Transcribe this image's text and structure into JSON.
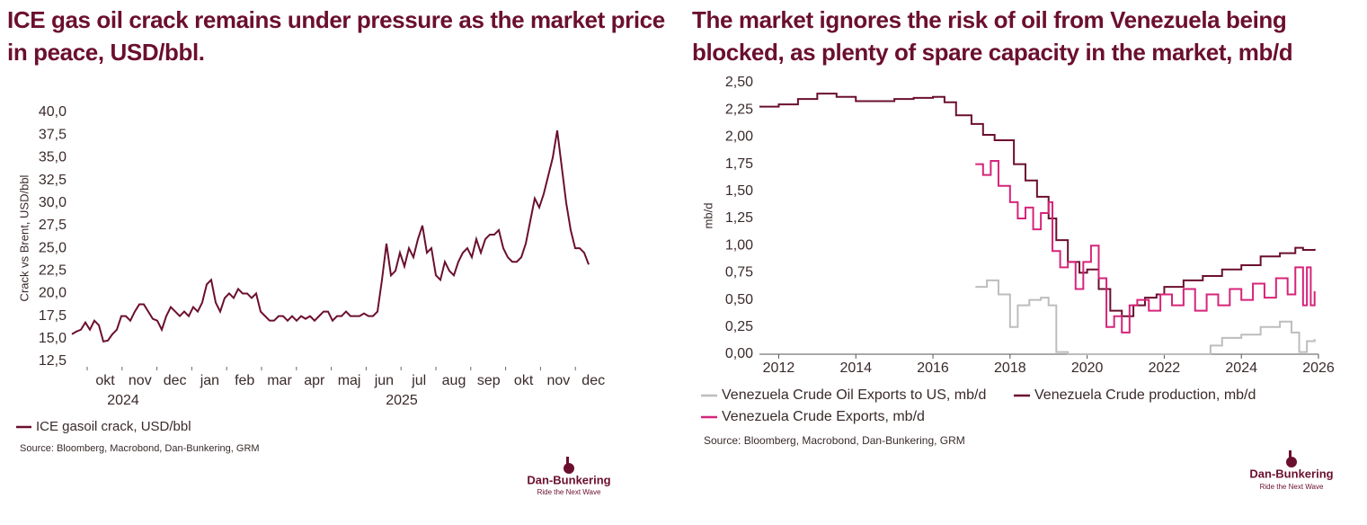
{
  "brand": {
    "name": "Dan-Bunkering",
    "tagline": "Ride the Next Wave"
  },
  "chart_data": [
    {
      "type": "line",
      "title": "ICE gas oil crack remains under pressure as the market price in peace, USD/bbl.",
      "y_label": "Crack vs Brent, USD/bbl",
      "source": "Source: Bloomberg, Macrobond, Dan-Bunkering, GRM",
      "x_labels": [
        "okt",
        "nov",
        "dec",
        "jan",
        "feb",
        "mar",
        "apr",
        "maj",
        "jun",
        "jul",
        "aug",
        "sep",
        "okt",
        "nov",
        "dec"
      ],
      "x_year_labels": [
        "2024",
        "2025"
      ],
      "ylim": [
        12.5,
        40
      ],
      "yticks": [
        {
          "value": 12.5,
          "label": "12,5"
        },
        {
          "value": 15,
          "label": "15,0"
        },
        {
          "value": 17.5,
          "label": "17,5"
        },
        {
          "value": 20,
          "label": "20,0"
        },
        {
          "value": 22.5,
          "label": "22,5"
        },
        {
          "value": 25,
          "label": "25,0"
        },
        {
          "value": 27.5,
          "label": "27,5"
        },
        {
          "value": 30,
          "label": "30,0"
        },
        {
          "value": 32.5,
          "label": "32,5"
        },
        {
          "value": 35,
          "label": "35,0"
        },
        {
          "value": 37.5,
          "label": "37,5"
        },
        {
          "value": 40,
          "label": "40,0"
        }
      ],
      "series": [
        {
          "name": "ICE gasoil crack, USD/bbl",
          "color": "#6b0f2e",
          "values": [
            15.5,
            15.8,
            16.0,
            16.8,
            16.0,
            17.0,
            16.5,
            14.7,
            14.8,
            15.5,
            16.0,
            17.5,
            17.5,
            17.0,
            18.0,
            18.8,
            18.8,
            18.0,
            17.2,
            17.0,
            16.0,
            17.5,
            18.5,
            18.0,
            17.5,
            18.0,
            17.5,
            18.5,
            18.0,
            19.0,
            21.0,
            21.5,
            19.0,
            18.0,
            19.5,
            20.0,
            19.5,
            20.5,
            20.0,
            20.0,
            19.5,
            20.0,
            18.0,
            17.5,
            17.0,
            17.0,
            17.5,
            17.5,
            17.0,
            17.5,
            17.0,
            17.5,
            17.2,
            17.5,
            17.0,
            17.5,
            18.0,
            18.0,
            17.0,
            17.5,
            17.5,
            18.0,
            17.5,
            17.5,
            17.5,
            17.8,
            17.5,
            17.5,
            18.0,
            21.5,
            25.5,
            22.0,
            22.5,
            24.5,
            23.0,
            25.0,
            24.0,
            26.0,
            27.5,
            24.5,
            25.0,
            22.0,
            21.5,
            23.5,
            22.5,
            22.0,
            23.5,
            24.5,
            25.0,
            24.0,
            26.0,
            24.5,
            26.0,
            26.5,
            26.5,
            27.0,
            25.0,
            24.0,
            23.5,
            23.5,
            24.0,
            25.5,
            28.0,
            30.5,
            29.5,
            31.0,
            33.0,
            35.0,
            38.0,
            34.0,
            30.0,
            27.0,
            25.0,
            25.0,
            24.5,
            23.2
          ]
        }
      ]
    },
    {
      "type": "line",
      "step": true,
      "title": "The market ignores the risk of oil from Venezuela being blocked, as plenty of spare capacity in the market, mb/d",
      "y_label": "mb/d",
      "source": "Source: Bloomberg, Macrobond, Dan-Bunkering, GRM",
      "xlim": [
        2011.5,
        2026
      ],
      "xticks": [
        2012,
        2014,
        2016,
        2018,
        2020,
        2022,
        2024,
        2026
      ],
      "ylim": [
        0,
        2.5
      ],
      "yticks": [
        {
          "value": 0,
          "label": "0,00"
        },
        {
          "value": 0.25,
          "label": "0,25"
        },
        {
          "value": 0.5,
          "label": "0,50"
        },
        {
          "value": 0.75,
          "label": "0,75"
        },
        {
          "value": 1,
          "label": "1,00"
        },
        {
          "value": 1.25,
          "label": "1,25"
        },
        {
          "value": 1.5,
          "label": "1,50"
        },
        {
          "value": 1.75,
          "label": "1,75"
        },
        {
          "value": 2,
          "label": "2,00"
        },
        {
          "value": 2.25,
          "label": "2,25"
        },
        {
          "value": 2.5,
          "label": "2,50"
        }
      ],
      "series": [
        {
          "name": "Venezuela Crude Oil Exports to US, mb/d",
          "color": "#bdbdbd",
          "x": [
            2017.1,
            2017.4,
            2017.7,
            2018.0,
            2018.2,
            2018.5,
            2018.8,
            2019.0,
            2019.2,
            2019.5,
            2022.9,
            2023.2,
            2023.5,
            2024.0,
            2024.5,
            2025.0,
            2025.3,
            2025.5,
            2025.7,
            2025.9
          ],
          "values": [
            0.62,
            0.68,
            0.55,
            0.25,
            0.45,
            0.5,
            0.52,
            0.45,
            0.02,
            0.0,
            0.0,
            0.08,
            0.15,
            0.18,
            0.25,
            0.3,
            0.2,
            0.02,
            0.12,
            0.14
          ]
        },
        {
          "name": "Venezuela Crude production, mb/d",
          "color": "#6b0f2e",
          "x": [
            2011.5,
            2012.0,
            2012.5,
            2013.0,
            2013.5,
            2014.0,
            2014.5,
            2015.0,
            2015.5,
            2016.0,
            2016.3,
            2016.6,
            2017.0,
            2017.3,
            2017.6,
            2018.0,
            2018.1,
            2018.4,
            2018.7,
            2019.0,
            2019.2,
            2019.5,
            2019.8,
            2020.0,
            2020.3,
            2020.6,
            2020.9,
            2021.2,
            2021.5,
            2021.8,
            2022.0,
            2022.5,
            2023.0,
            2023.5,
            2024.0,
            2024.5,
            2025.0,
            2025.4,
            2025.6,
            2025.9
          ],
          "values": [
            2.28,
            2.3,
            2.35,
            2.4,
            2.37,
            2.33,
            2.33,
            2.35,
            2.36,
            2.37,
            2.32,
            2.2,
            2.12,
            2.02,
            1.97,
            1.97,
            1.75,
            1.6,
            1.45,
            1.25,
            1.05,
            0.85,
            0.75,
            0.78,
            0.6,
            0.4,
            0.35,
            0.45,
            0.52,
            0.55,
            0.62,
            0.68,
            0.72,
            0.78,
            0.82,
            0.9,
            0.93,
            0.98,
            0.96,
            0.97
          ]
        },
        {
          "name": "Venezuela Crude Exports, mb/d",
          "color": "#d6247a",
          "x": [
            2017.1,
            2017.3,
            2017.5,
            2017.7,
            2018.0,
            2018.2,
            2018.4,
            2018.6,
            2018.8,
            2019.0,
            2019.1,
            2019.3,
            2019.5,
            2019.7,
            2019.9,
            2020.1,
            2020.3,
            2020.5,
            2020.7,
            2020.9,
            2021.1,
            2021.3,
            2021.6,
            2021.9,
            2022.2,
            2022.5,
            2022.8,
            2023.1,
            2023.4,
            2023.7,
            2024.0,
            2024.3,
            2024.6,
            2024.9,
            2025.2,
            2025.4,
            2025.6,
            2025.7,
            2025.8,
            2025.9
          ],
          "values": [
            1.75,
            1.65,
            1.78,
            1.55,
            1.4,
            1.25,
            1.35,
            1.15,
            1.3,
            1.4,
            0.95,
            0.8,
            0.85,
            0.6,
            0.85,
            1.0,
            0.7,
            0.25,
            0.35,
            0.2,
            0.45,
            0.5,
            0.4,
            0.55,
            0.45,
            0.6,
            0.4,
            0.55,
            0.45,
            0.6,
            0.5,
            0.65,
            0.52,
            0.7,
            0.55,
            0.8,
            0.45,
            0.8,
            0.45,
            0.58
          ]
        }
      ]
    }
  ]
}
